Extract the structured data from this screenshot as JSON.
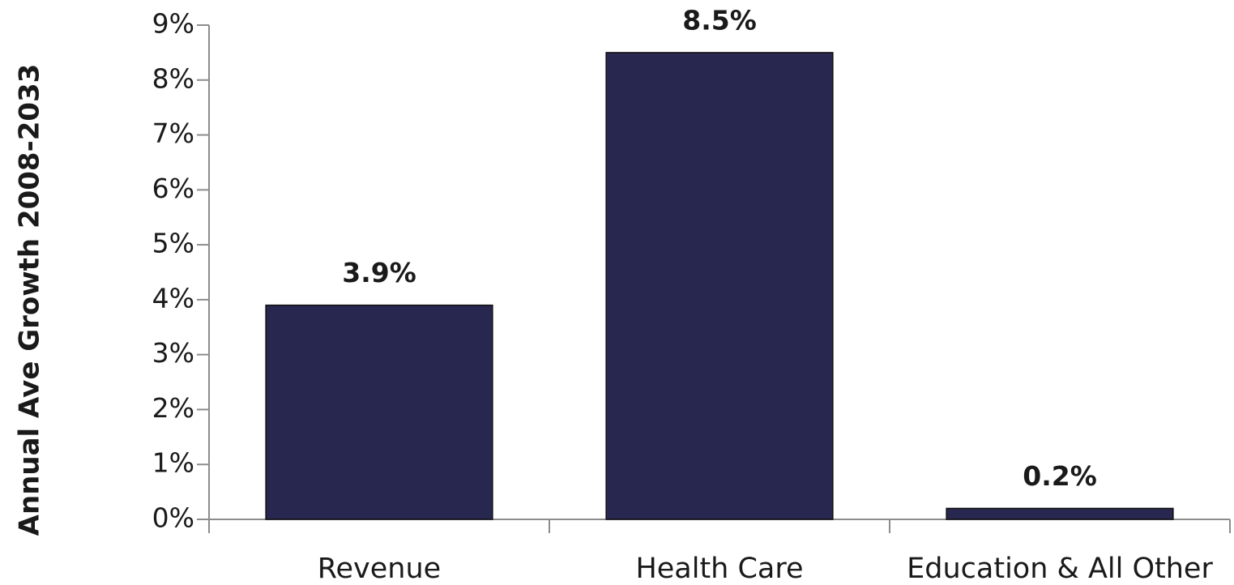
{
  "chart_data": {
    "type": "bar",
    "y_axis_label": "Annual Ave Growth 2008-2033",
    "categories": [
      "Revenue",
      "Health Care",
      "Education & All Other"
    ],
    "values": [
      3.9,
      8.5,
      0.2
    ],
    "value_labels": [
      "3.9%",
      "8.5%",
      "0.2%"
    ],
    "color": "#27274f",
    "ylim": [
      0,
      9
    ],
    "yticks": [
      {
        "value": 0,
        "label": "0%"
      },
      {
        "value": 1,
        "label": "1%"
      },
      {
        "value": 2,
        "label": "2%"
      },
      {
        "value": 3,
        "label": "3%"
      },
      {
        "value": 4,
        "label": "4%"
      },
      {
        "value": 5,
        "label": "5%"
      },
      {
        "value": 6,
        "label": "6%"
      },
      {
        "value": 7,
        "label": "7%"
      },
      {
        "value": 8,
        "label": "8%"
      },
      {
        "value": 9,
        "label": "9%"
      }
    ],
    "grid": false
  }
}
